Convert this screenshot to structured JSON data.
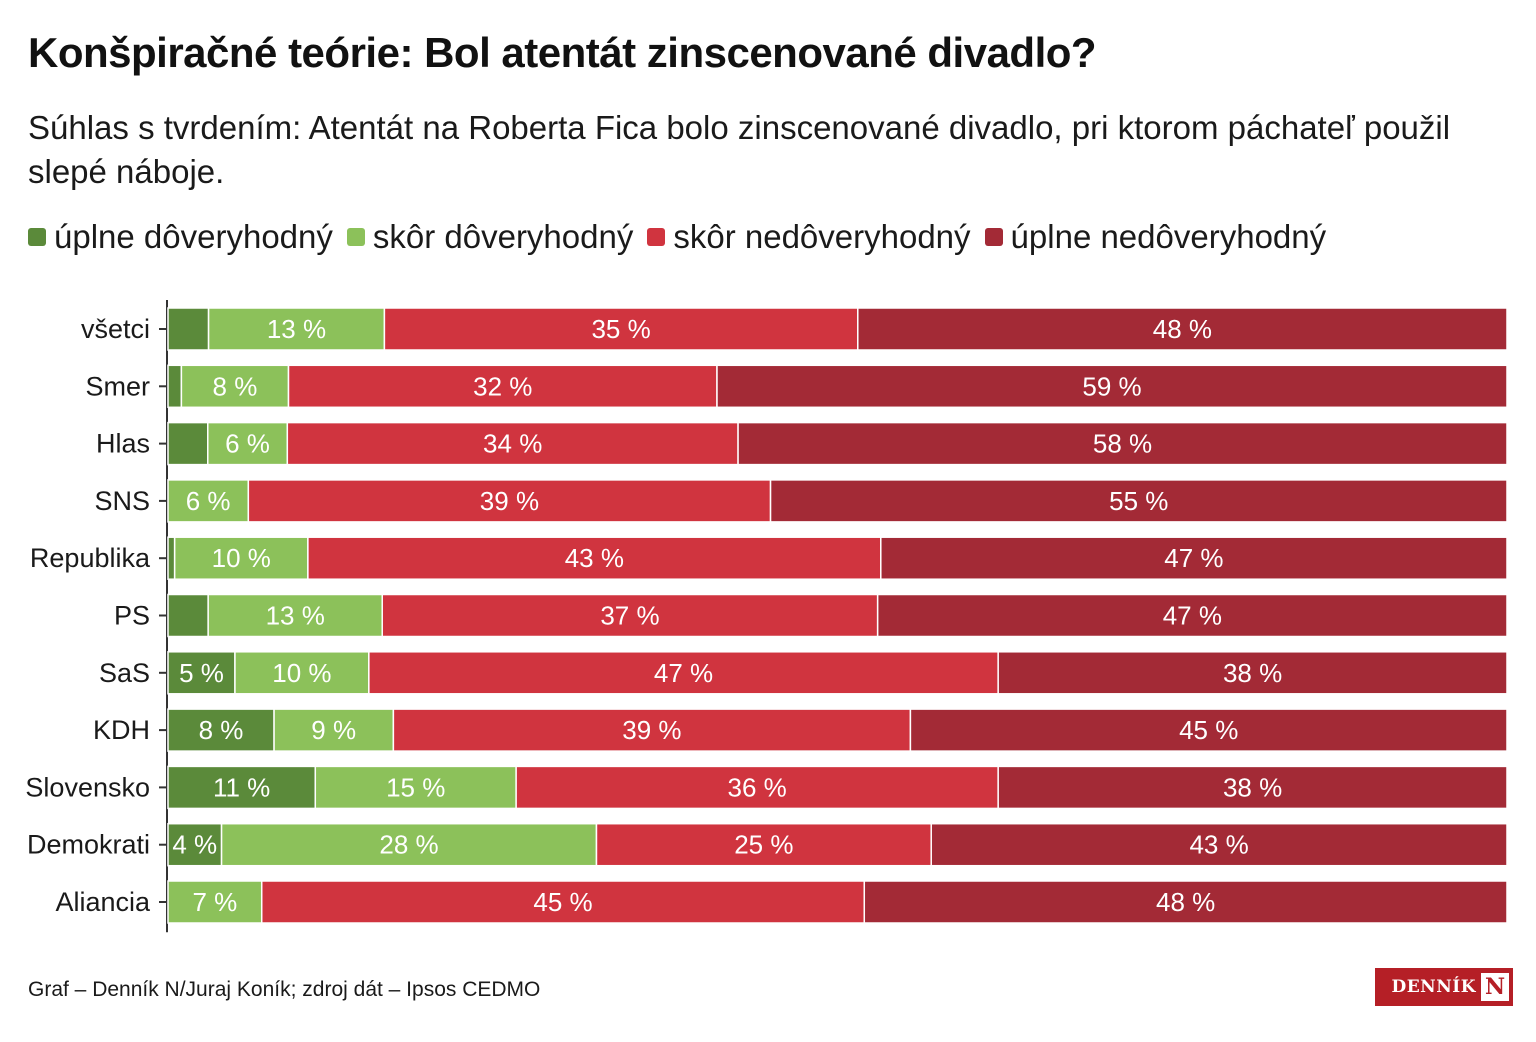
{
  "title": "Konšpiračné teórie: Bol atentát zinscenované divadlo?",
  "subtitle": "Súhlas s tvrdením: Atentát na Roberta Fica bolo zinscenované divadlo, pri ktorom páchateľ použil slepé náboje.",
  "source": "Graf – Denník N/Juraj Koník; zdroj dát – Ipsos CEDMO",
  "logo": {
    "text": "DENNÍK",
    "letter": "N"
  },
  "colors": [
    "#5b8a3a",
    "#8cc15a",
    "#d0343f",
    "#a32a36"
  ],
  "chart_data": {
    "type": "bar",
    "orientation": "horizontal",
    "stacked": true,
    "normalized": true,
    "unit": "%",
    "categories": [
      "všetci",
      "Smer",
      "Hlas",
      "SNS",
      "Republika",
      "PS",
      "SaS",
      "KDH",
      "Slovensko",
      "Demokrati",
      "Aliancia"
    ],
    "series": [
      {
        "name": "úplne dôveryhodný",
        "color": "#5b8a3a",
        "values": [
          3,
          1,
          3,
          0,
          0.5,
          3,
          5,
          8,
          11,
          4,
          0
        ]
      },
      {
        "name": "skôr dôveryhodný",
        "color": "#8cc15a",
        "values": [
          13,
          8,
          6,
          6,
          10,
          13,
          10,
          9,
          15,
          28,
          7
        ]
      },
      {
        "name": "skôr nedôveryhodný",
        "color": "#d0343f",
        "values": [
          35,
          32,
          34,
          39,
          43,
          37,
          47,
          39,
          36,
          25,
          45
        ]
      },
      {
        "name": "úplne nedôveryhodný",
        "color": "#a32a36",
        "values": [
          48,
          59,
          58,
          55,
          47,
          47,
          38,
          45,
          38,
          43,
          48
        ]
      }
    ],
    "data_labels": [
      [
        "",
        "13 %",
        "35 %",
        "48 %"
      ],
      [
        "",
        "8 %",
        "32 %",
        "59 %"
      ],
      [
        "",
        "6 %",
        "34 %",
        "58 %"
      ],
      [
        "",
        "6 %",
        "39 %",
        "55 %"
      ],
      [
        "",
        "10 %",
        "43 %",
        "47 %"
      ],
      [
        "",
        "13 %",
        "37 %",
        "47 %"
      ],
      [
        "5 %",
        "10 %",
        "47 %",
        "38 %"
      ],
      [
        "8 %",
        "9 %",
        "39 %",
        "45 %"
      ],
      [
        "11 %",
        "15 %",
        "36 %",
        "38 %"
      ],
      [
        "4 %",
        "28 %",
        "25 %",
        "43 %"
      ],
      [
        "",
        "7 %",
        "45 %",
        "48 %"
      ]
    ],
    "legend_position": "top-left",
    "grid": false
  }
}
